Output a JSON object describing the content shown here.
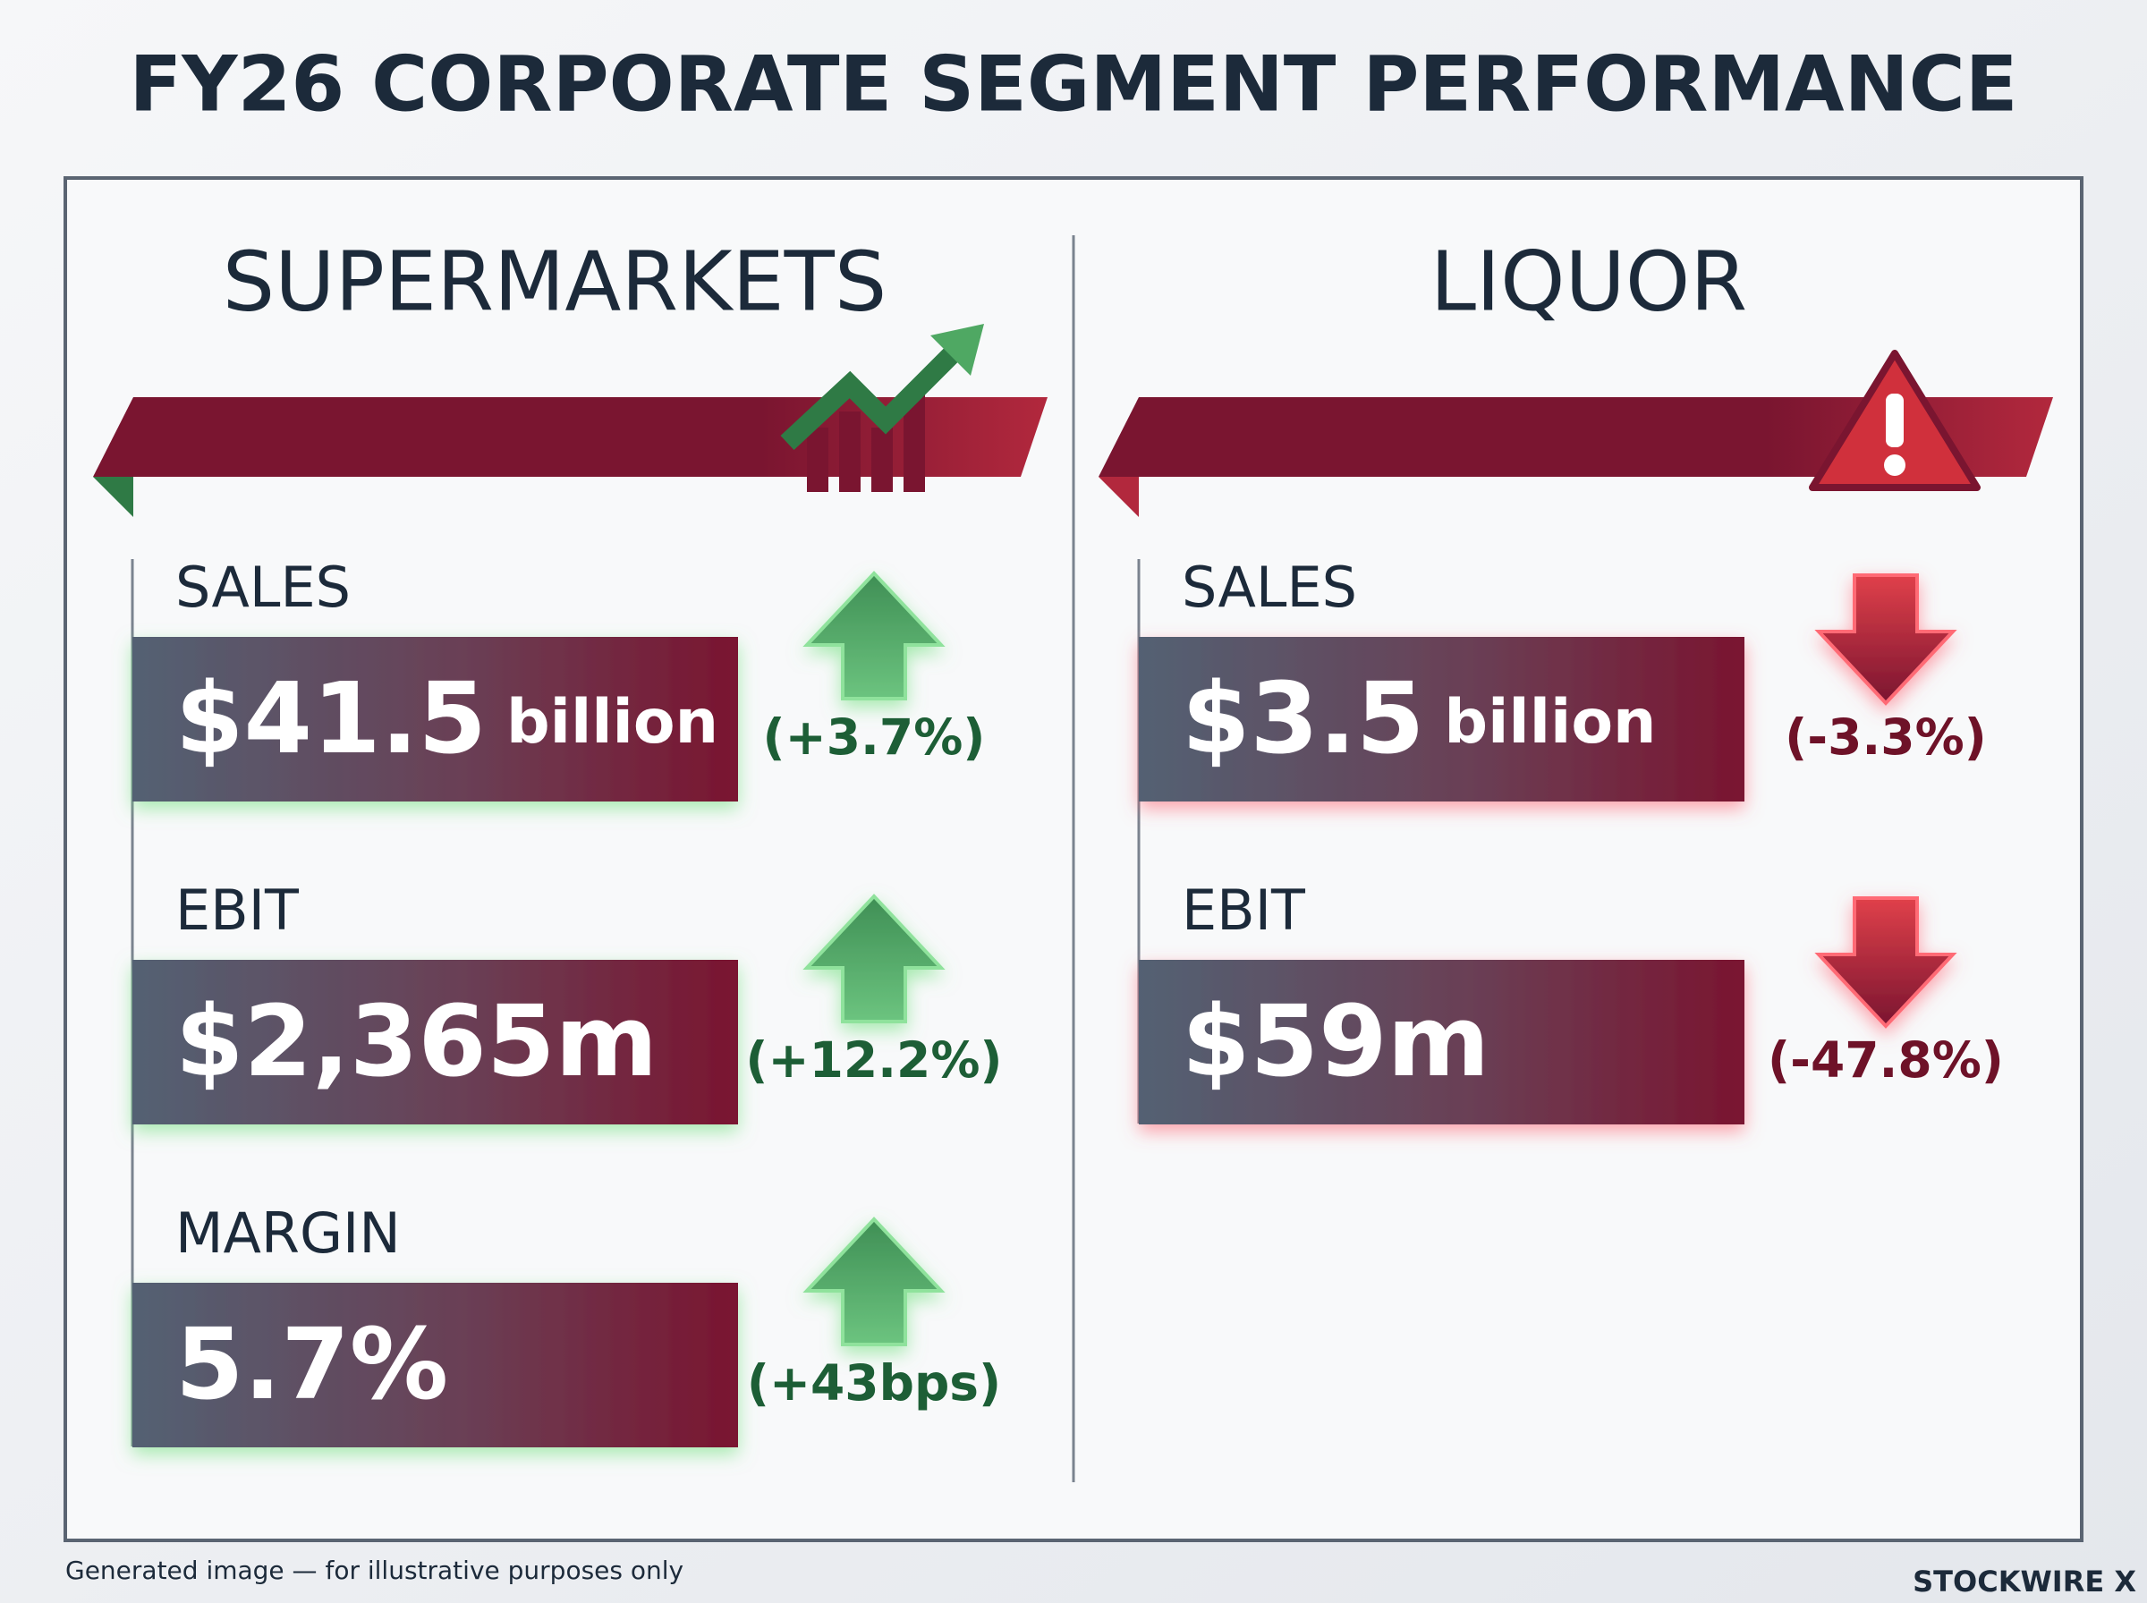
{
  "title": "FY26 CORPORATE SEGMENT PERFORMANCE",
  "segments": [
    {
      "name": "SUPERMARKETS",
      "color": "#1d5e36",
      "arrow": "up",
      "metrics": [
        {
          "label": "SALES",
          "value": "$41.5",
          "unit": "billion",
          "change": "(+3.7%)"
        },
        {
          "label": "EBIT",
          "value": "$2,365m",
          "change": "(+12.2%)"
        },
        {
          "label": "MARGIN",
          "value": "5.7%",
          "change": "(+43bps)"
        }
      ]
    },
    {
      "name": "LIQUOR",
      "color": "#6e1228",
      "arrow": "down",
      "metrics": [
        {
          "label": "SALES",
          "value": "$3.5",
          "unit": "billion",
          "change": "(-3.3%)"
        },
        {
          "label": "EBIT",
          "value": "$59m",
          "change": "(-47.8%)"
        }
      ]
    }
  ],
  "footer": {
    "note": "Generated image — for illustrative purposes only",
    "brand": "STOCKWIRE X"
  }
}
